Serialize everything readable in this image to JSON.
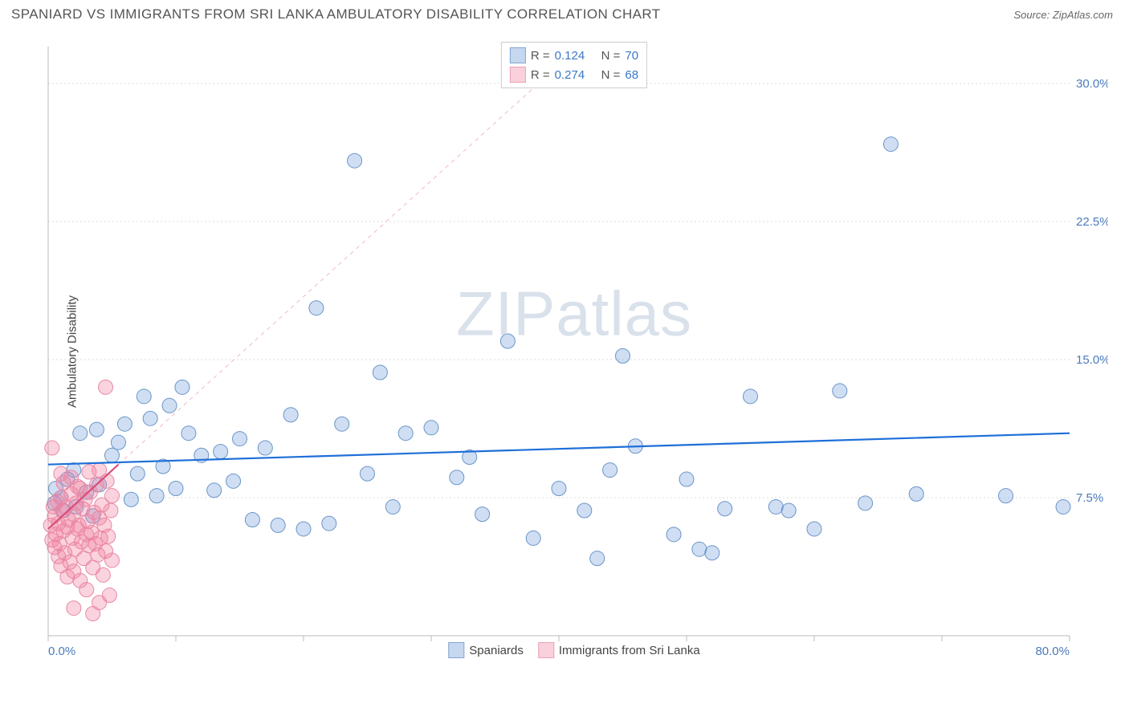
{
  "header": {
    "title": "SPANIARD VS IMMIGRANTS FROM SRI LANKA AMBULATORY DISABILITY CORRELATION CHART",
    "source_prefix": "Source: ",
    "source_name": "ZipAtlas.com"
  },
  "watermark": "ZIPatlas",
  "chart": {
    "type": "scatter",
    "y_axis_label": "Ambulatory Disability",
    "xlim": [
      0,
      80
    ],
    "ylim": [
      0,
      32
    ],
    "x_ticks": [
      0,
      10,
      20,
      30,
      40,
      50,
      60,
      70,
      80
    ],
    "x_tick_labels": {
      "0": "0.0%",
      "80": "80.0%"
    },
    "y_ticks": [
      7.5,
      15.0,
      22.5,
      30.0
    ],
    "y_tick_labels": [
      "7.5%",
      "15.0%",
      "22.5%",
      "30.0%"
    ],
    "background_color": "#ffffff",
    "grid_color": "#dddddd",
    "axis_color": "#bbbbbb",
    "tick_label_color": "#4a7abc",
    "series": [
      {
        "name": "Spaniards",
        "legend_label": "Spaniards",
        "marker_color_fill": "rgba(120,160,220,0.35)",
        "marker_color_stroke": "#6a95c9",
        "swatch_fill": "#c6d8ef",
        "swatch_border": "#82a5d2",
        "marker_radius": 9,
        "trend_line": {
          "x1": 0,
          "y1": 9.3,
          "x2": 80,
          "y2": 11.0,
          "color": "#1e6fd8",
          "width": 2.2,
          "dash": "none"
        },
        "R": "0.124",
        "N": "70",
        "points": [
          [
            0.5,
            7.2
          ],
          [
            0.6,
            8.0
          ],
          [
            1.0,
            7.5
          ],
          [
            1.2,
            6.8
          ],
          [
            1.5,
            8.5
          ],
          [
            2.0,
            9.0
          ],
          [
            2.2,
            7.0
          ],
          [
            2.5,
            11.0
          ],
          [
            3.0,
            7.8
          ],
          [
            3.5,
            6.5
          ],
          [
            4.0,
            8.2
          ],
          [
            5.0,
            9.8
          ],
          [
            5.5,
            10.5
          ],
          [
            6.0,
            11.5
          ],
          [
            6.5,
            7.4
          ],
          [
            7.0,
            8.8
          ],
          [
            7.5,
            13.0
          ],
          [
            8.0,
            11.8
          ],
          [
            8.5,
            7.6
          ],
          [
            9.0,
            9.2
          ],
          [
            9.5,
            12.5
          ],
          [
            10.0,
            8.0
          ],
          [
            10.5,
            13.5
          ],
          [
            11.0,
            11.0
          ],
          [
            12.0,
            9.8
          ],
          [
            13.0,
            7.9
          ],
          [
            13.5,
            10.0
          ],
          [
            14.5,
            8.4
          ],
          [
            15.0,
            10.7
          ],
          [
            16.0,
            6.3
          ],
          [
            17.0,
            10.2
          ],
          [
            18.0,
            6.0
          ],
          [
            19.0,
            12.0
          ],
          [
            20.0,
            5.8
          ],
          [
            21.0,
            17.8
          ],
          [
            22.0,
            6.1
          ],
          [
            23.0,
            11.5
          ],
          [
            24.0,
            25.8
          ],
          [
            25.0,
            8.8
          ],
          [
            26.0,
            14.3
          ],
          [
            27.0,
            7.0
          ],
          [
            28.0,
            11.0
          ],
          [
            30.0,
            11.3
          ],
          [
            32.0,
            8.6
          ],
          [
            33.0,
            9.7
          ],
          [
            34.0,
            6.6
          ],
          [
            36.0,
            16.0
          ],
          [
            38.0,
            5.3
          ],
          [
            40.0,
            8.0
          ],
          [
            42.0,
            6.8
          ],
          [
            43.0,
            4.2
          ],
          [
            44.0,
            9.0
          ],
          [
            45.0,
            15.2
          ],
          [
            46.0,
            10.3
          ],
          [
            49.0,
            5.5
          ],
          [
            50.0,
            8.5
          ],
          [
            51.0,
            4.7
          ],
          [
            52.0,
            4.5
          ],
          [
            53.0,
            6.9
          ],
          [
            55.0,
            13.0
          ],
          [
            57.0,
            7.0
          ],
          [
            58.0,
            6.8
          ],
          [
            60.0,
            5.8
          ],
          [
            62.0,
            13.3
          ],
          [
            64.0,
            7.2
          ],
          [
            66.0,
            26.7
          ],
          [
            68.0,
            7.7
          ],
          [
            75.0,
            7.6
          ],
          [
            79.5,
            7.0
          ],
          [
            3.8,
            11.2
          ]
        ]
      },
      {
        "name": "Immigrants from Sri Lanka",
        "legend_label": "Immigrants from Sri Lanka",
        "marker_color_fill": "rgba(240,130,160,0.35)",
        "marker_color_stroke": "#e888a4",
        "swatch_fill": "#f9d0db",
        "swatch_border": "#eaa2b5",
        "marker_radius": 9,
        "trend_line": {
          "x1": 0,
          "y1": 5.8,
          "x2": 5.5,
          "y2": 9.3,
          "color": "#d84e78",
          "width": 2.2,
          "dash": "none"
        },
        "trend_extend": {
          "x1": 5.5,
          "y1": 9.3,
          "x2": 40,
          "y2": 31.0,
          "color": "#f0b8c7",
          "width": 1,
          "dash": "5,5"
        },
        "R": "0.274",
        "N": "68",
        "points": [
          [
            0.2,
            6.0
          ],
          [
            0.3,
            5.2
          ],
          [
            0.4,
            7.0
          ],
          [
            0.5,
            4.8
          ],
          [
            0.5,
            6.5
          ],
          [
            0.6,
            5.5
          ],
          [
            0.7,
            7.3
          ],
          [
            0.8,
            4.3
          ],
          [
            0.8,
            6.1
          ],
          [
            0.9,
            5.0
          ],
          [
            1.0,
            7.5
          ],
          [
            1.0,
            3.8
          ],
          [
            1.1,
            6.8
          ],
          [
            1.2,
            5.7
          ],
          [
            1.3,
            4.5
          ],
          [
            1.4,
            7.0
          ],
          [
            1.5,
            3.2
          ],
          [
            1.5,
            5.9
          ],
          [
            1.6,
            6.3
          ],
          [
            1.7,
            4.0
          ],
          [
            1.8,
            7.7
          ],
          [
            1.9,
            5.3
          ],
          [
            2.0,
            6.6
          ],
          [
            2.0,
            3.5
          ],
          [
            2.1,
            4.7
          ],
          [
            2.2,
            7.2
          ],
          [
            2.3,
            5.8
          ],
          [
            2.4,
            6.0
          ],
          [
            2.5,
            3.0
          ],
          [
            2.5,
            8.0
          ],
          [
            2.6,
            5.1
          ],
          [
            2.7,
            6.9
          ],
          [
            2.8,
            4.2
          ],
          [
            2.9,
            7.4
          ],
          [
            3.0,
            5.5
          ],
          [
            3.0,
            2.5
          ],
          [
            3.1,
            6.2
          ],
          [
            3.2,
            4.9
          ],
          [
            3.3,
            7.8
          ],
          [
            3.4,
            5.6
          ],
          [
            3.5,
            3.7
          ],
          [
            3.6,
            6.7
          ],
          [
            3.7,
            5.0
          ],
          [
            3.8,
            8.2
          ],
          [
            3.9,
            4.4
          ],
          [
            4.0,
            6.4
          ],
          [
            4.0,
            1.8
          ],
          [
            4.1,
            5.3
          ],
          [
            4.2,
            7.1
          ],
          [
            4.3,
            3.3
          ],
          [
            4.4,
            6.0
          ],
          [
            4.5,
            4.6
          ],
          [
            4.6,
            8.4
          ],
          [
            4.7,
            5.4
          ],
          [
            4.8,
            2.2
          ],
          [
            4.9,
            6.8
          ],
          [
            5.0,
            4.1
          ],
          [
            5.0,
            7.6
          ],
          [
            1.0,
            8.8
          ],
          [
            1.2,
            8.3
          ],
          [
            1.8,
            8.6
          ],
          [
            2.3,
            8.1
          ],
          [
            3.2,
            8.9
          ],
          [
            4.0,
            9.0
          ],
          [
            0.3,
            10.2
          ],
          [
            3.5,
            1.2
          ],
          [
            2.0,
            1.5
          ],
          [
            4.5,
            13.5
          ]
        ]
      }
    ],
    "legend_top": {
      "R_label": "R =",
      "N_label": "N =",
      "value_color": "#3b78c4",
      "text_color": "#555"
    },
    "legend_bottom_labels": [
      "Spaniards",
      "Immigrants from Sri Lanka"
    ]
  }
}
